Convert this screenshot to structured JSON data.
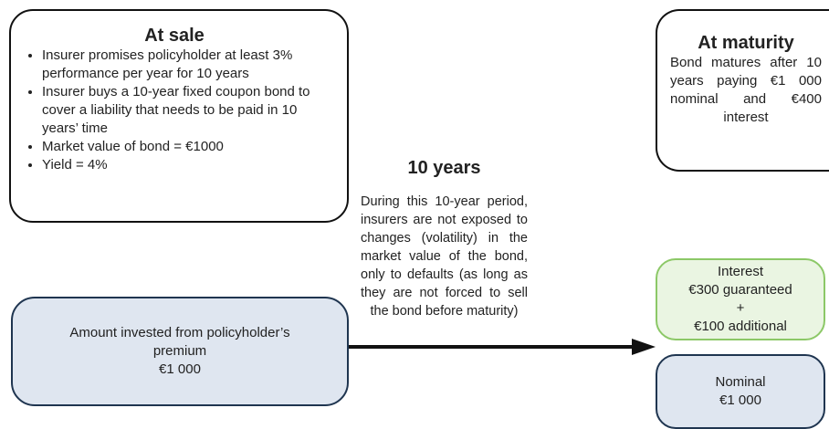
{
  "at_sale": {
    "title": "At sale",
    "bullets": [
      "Insurer promises policyholder at least 3% performance per year for 10 years",
      "Insurer buys a 10-year fixed coupon bond to cover a liability that needs to be paid in 10 years’ time",
      "Market value of bond = €1000",
      "Yield = 4%"
    ]
  },
  "at_maturity": {
    "title": "At maturity",
    "text": "Bond matures after 10 years paying €1 000 nominal and €400 interest"
  },
  "period": {
    "title": "10 years",
    "text": "During this 10-year period, insurers are not exposed to changes (volatility) in the market value of the bond, only to defaults (as long as they are not forced to sell the bond before maturity)"
  },
  "invested": {
    "lines": [
      "Amount invested from policyholder’s premium",
      "€1 000"
    ]
  },
  "interest": {
    "lines": [
      "Interest",
      "€300 guaranteed",
      "+",
      "€100 additional"
    ]
  },
  "nominal": {
    "lines": [
      "Nominal",
      "€1 000"
    ]
  }
}
